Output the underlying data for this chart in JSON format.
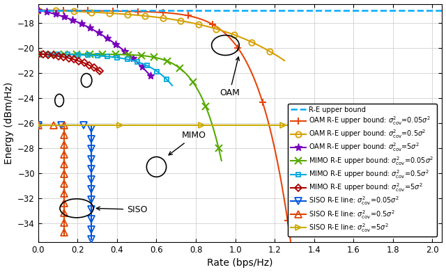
{
  "xlabel": "Rate (bps/Hz)",
  "ylabel": "Energy (dBm/Hz)",
  "xlim": [
    0,
    2.05
  ],
  "ylim": [
    -35.5,
    -16.5
  ],
  "xticks": [
    0,
    0.2,
    0.4,
    0.6,
    0.8,
    1.0,
    1.2,
    1.4,
    1.6,
    1.8,
    2.0
  ],
  "yticks": [
    -34,
    -32,
    -30,
    -28,
    -26,
    -24,
    -22,
    -20,
    -18
  ],
  "colors": {
    "RE_upper_bound": "#00AAFF",
    "OAM_005": "#E8450A",
    "OAM_05": "#D4A000",
    "OAM_5": "#7700BB",
    "MIMO_005": "#55AA00",
    "MIMO_05": "#00AADD",
    "MIMO_5": "#AA0000",
    "SISO_005": "#0055DD",
    "SISO_05": "#DD4400",
    "SISO_5": "#CCAA00"
  },
  "legend_fontsize": 7.0,
  "tick_fontsize": 8.5,
  "label_fontsize": 10
}
